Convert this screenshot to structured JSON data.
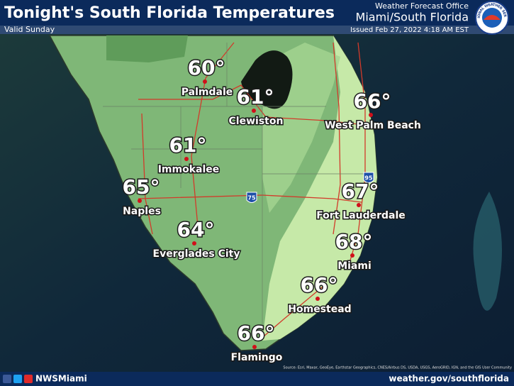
{
  "header": {
    "title": "Tonight's South Florida Temperatures",
    "valid": "Valid Sunday",
    "office": "Weather Forecast Office",
    "location": "Miami/South Florida",
    "issued": "Issued Feb 27, 2022 4:18 AM EST",
    "logo": "NATIONAL WEATHER SERVICE"
  },
  "cities": [
    {
      "name": "Palmdale",
      "temperature": "60°"
    },
    {
      "name": "Clewiston",
      "temperature": "61°"
    },
    {
      "name": "West Palm Beach",
      "temperature": "66°"
    },
    {
      "name": "Immokalee",
      "temperature": "61°"
    },
    {
      "name": "Naples",
      "temperature": "65°"
    },
    {
      "name": "Everglades City",
      "temperature": "64°"
    },
    {
      "name": "Fort Lauderdale",
      "temperature": "67°"
    },
    {
      "name": "Miami",
      "temperature": "68°"
    },
    {
      "name": "Homestead",
      "temperature": "66°"
    },
    {
      "name": "Flamingo",
      "temperature": "66°"
    }
  ],
  "highways": [
    "75",
    "95"
  ],
  "attribution": "Source: Esri, Maxar, GeoEye, Earthstar Geographics, CNES/Airbus DS, USDA, USGS, AeroGRID, IGN, and the GIS User Community",
  "footer": {
    "social": "NWSMiami",
    "website": "weather.gov/southflorida"
  }
}
